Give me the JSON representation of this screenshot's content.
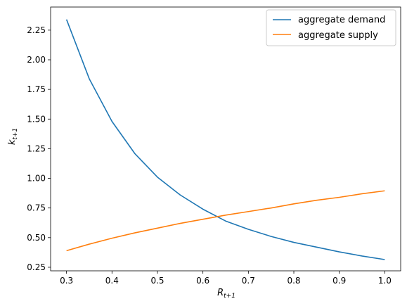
{
  "chart_data": {
    "type": "line",
    "xlabel": "R",
    "xlabel_sub": "t+1",
    "ylabel": "k",
    "ylabel_sub": "t+1",
    "xlim": [
      0.265,
      1.035
    ],
    "ylim": [
      0.22,
      2.445
    ],
    "xticks": [
      0.3,
      0.4,
      0.5,
      0.6,
      0.7,
      0.8,
      0.9,
      1.0
    ],
    "xtick_labels": [
      "0.3",
      "0.4",
      "0.5",
      "0.6",
      "0.7",
      "0.8",
      "0.9",
      "1.0"
    ],
    "yticks": [
      0.25,
      0.5,
      0.75,
      1.0,
      1.25,
      1.5,
      1.75,
      2.0,
      2.25
    ],
    "ytick_labels": [
      "0.25",
      "0.50",
      "0.75",
      "1.00",
      "1.25",
      "1.50",
      "1.75",
      "2.00",
      "2.25"
    ],
    "grid": false,
    "legend_position": "top-right",
    "series": [
      {
        "name": "aggregate demand",
        "color": "#1f77b4",
        "x": [
          0.3,
          0.35,
          0.4,
          0.45,
          0.5,
          0.55,
          0.6,
          0.65,
          0.7,
          0.75,
          0.8,
          0.85,
          0.9,
          0.95,
          1.0
        ],
        "y": [
          2.34,
          1.84,
          1.48,
          1.21,
          1.01,
          0.86,
          0.74,
          0.64,
          0.57,
          0.51,
          0.46,
          0.42,
          0.38,
          0.345,
          0.315
        ]
      },
      {
        "name": "aggregate supply",
        "color": "#ff7f0e",
        "x": [
          0.3,
          0.35,
          0.4,
          0.45,
          0.5,
          0.55,
          0.6,
          0.65,
          0.7,
          0.75,
          0.8,
          0.85,
          0.9,
          0.95,
          1.0
        ],
        "y": [
          0.39,
          0.445,
          0.495,
          0.54,
          0.58,
          0.62,
          0.655,
          0.69,
          0.72,
          0.75,
          0.785,
          0.815,
          0.84,
          0.87,
          0.895
        ]
      }
    ]
  }
}
